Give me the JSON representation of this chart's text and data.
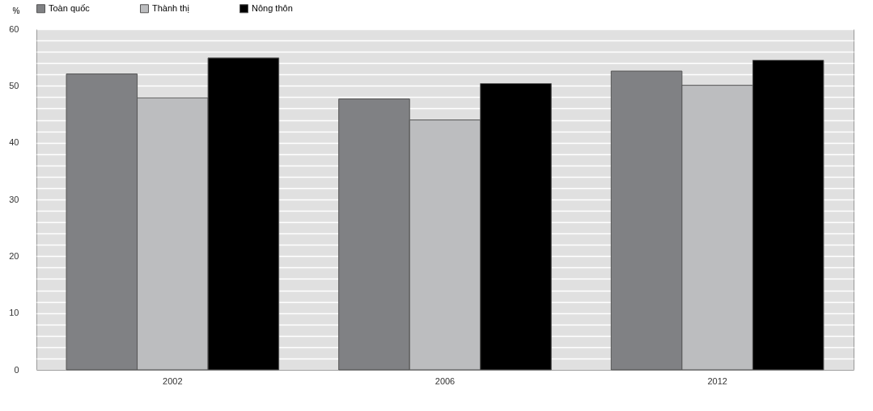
{
  "chart_data": {
    "type": "bar",
    "ylabel": "%",
    "categories": [
      "2002",
      "2006",
      "2012"
    ],
    "series": [
      {
        "name": "Toàn quốc",
        "color": "#808184",
        "values": [
          52.1,
          47.7,
          52.6
        ]
      },
      {
        "name": "Thành thị",
        "color": "#bcbdbf",
        "values": [
          47.9,
          44.0,
          50.1
        ]
      },
      {
        "name": "Nông thôn",
        "color": "#000000",
        "values": [
          54.9,
          50.4,
          54.5
        ]
      }
    ],
    "ylim": [
      0,
      60
    ],
    "yticks": [
      0,
      {
        "value": 2,
        "label": null
      },
      {
        "value": 4,
        "label": null
      },
      {
        "value": 6,
        "label": null
      },
      {
        "value": 8,
        "label": null
      },
      10,
      {
        "value": 12,
        "label": null
      },
      {
        "value": 14,
        "label": null
      },
      {
        "value": 16,
        "label": null
      },
      {
        "value": 18,
        "label": null
      },
      20,
      {
        "value": 22,
        "label": null
      },
      {
        "value": 24,
        "label": null
      },
      {
        "value": 26,
        "label": null
      },
      {
        "value": 28,
        "label": null
      },
      30,
      {
        "value": 32,
        "label": null
      },
      {
        "value": 34,
        "label": null
      },
      {
        "value": 36,
        "label": null
      },
      {
        "value": 38,
        "label": null
      },
      40,
      {
        "value": 42,
        "label": null
      },
      {
        "value": 44,
        "label": null
      },
      {
        "value": 46,
        "label": null
      },
      {
        "value": 48,
        "label": null
      },
      50,
      {
        "value": 52,
        "label": null
      },
      {
        "value": 54,
        "label": null
      },
      {
        "value": 56,
        "label": null
      },
      {
        "value": 58,
        "label": null
      },
      60
    ],
    "grid": true,
    "legend": "top"
  }
}
